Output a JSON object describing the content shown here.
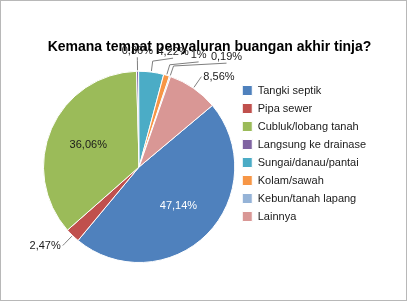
{
  "chart_data": {
    "type": "pie",
    "title": "Kemana tempat penyaluran buangan akhir tinja?",
    "categories": [
      "Tangki septik",
      "Pipa sewer",
      "Cubluk/lobang tanah",
      "Langsung ke drainase",
      "Sungai/danau/pantai",
      "Kolam/sawah",
      "Kebun/tanah lapang",
      "Lainnya"
    ],
    "values": [
      47.14,
      2.47,
      36.06,
      0.36,
      4.22,
      1,
      0.19,
      8.56
    ],
    "value_labels": [
      "47,14%",
      "2,47%",
      "36,06%",
      "0,36%",
      "4,22%",
      "1%",
      "0,19%",
      "8,56%"
    ],
    "colors": [
      "#4f81bd",
      "#c0504d",
      "#9bbb59",
      "#8064a2",
      "#4bacc6",
      "#f79646",
      "#95b3d7",
      "#d99795"
    ],
    "legend": "right",
    "data_labels": true
  }
}
